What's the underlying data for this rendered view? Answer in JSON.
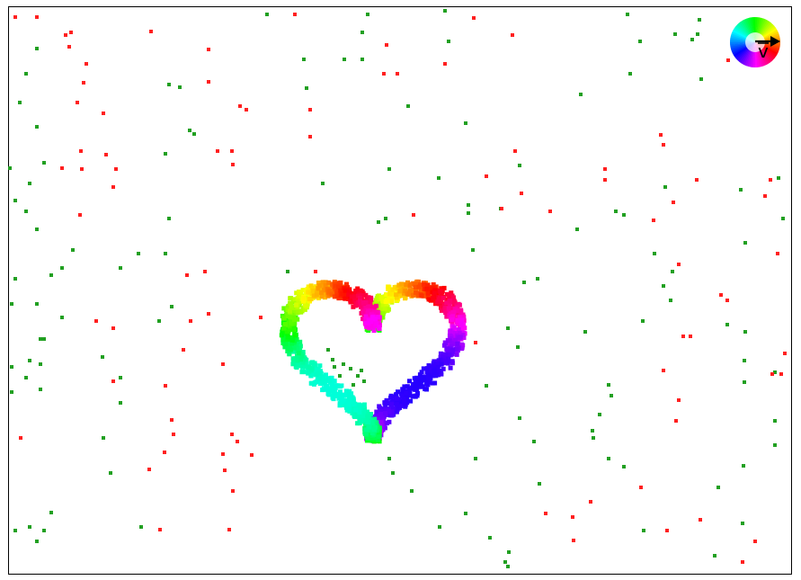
{
  "colors": {
    "background": "#ffffff",
    "frame": "#000000",
    "particle_green": "#22a022",
    "particle_red": "#ff2020"
  },
  "legend": {
    "label": "v",
    "icon": "color-wheel-icon"
  }
}
